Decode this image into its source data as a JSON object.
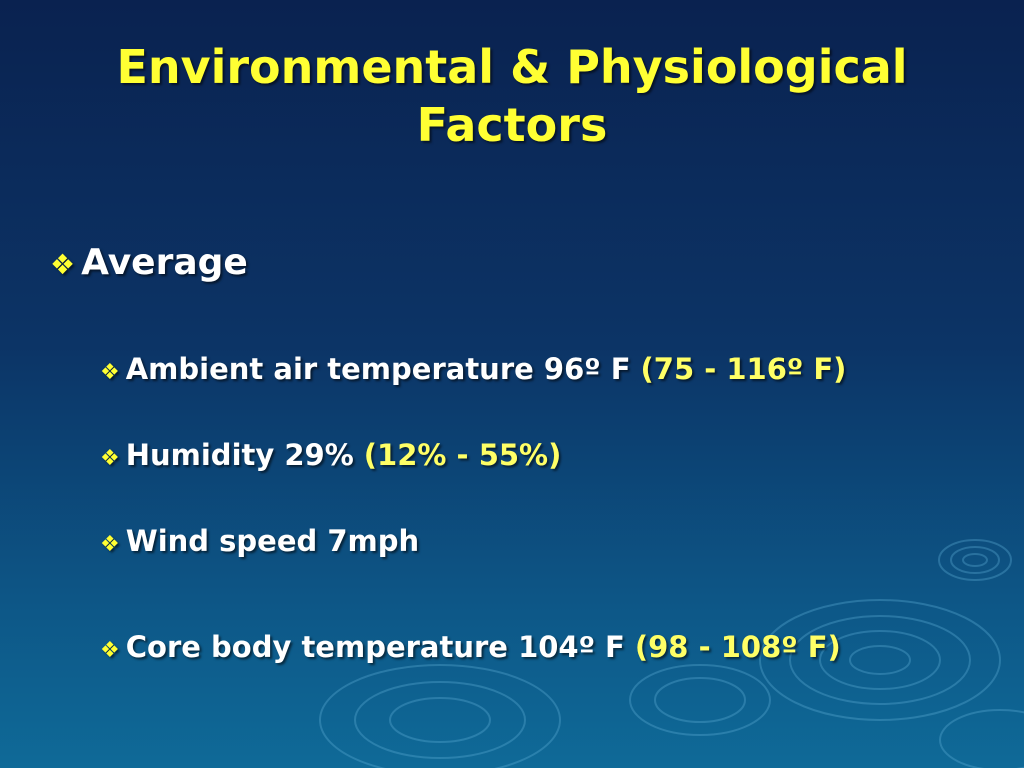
{
  "slide": {
    "title_line1": "Environmental & Physiological",
    "title_line2": "Factors",
    "heading": "Average",
    "bullet_icon": "diamond-bullet-icon",
    "items": [
      {
        "label": "Ambient air temperature 96º F",
        "range": "(75 - 116º F)"
      },
      {
        "label": "Humidity 29%",
        "range": "(12% - 55%)"
      },
      {
        "label": "Wind speed 7mph",
        "range": ""
      },
      {
        "label": "Core body temperature 104º F",
        "range": "(98 - 108º F)"
      }
    ]
  },
  "colors": {
    "title": "#ffff33",
    "text": "#ffffff",
    "range": "#ffff66",
    "background_top": "#0a2250",
    "background_bottom": "#0f6a98"
  }
}
